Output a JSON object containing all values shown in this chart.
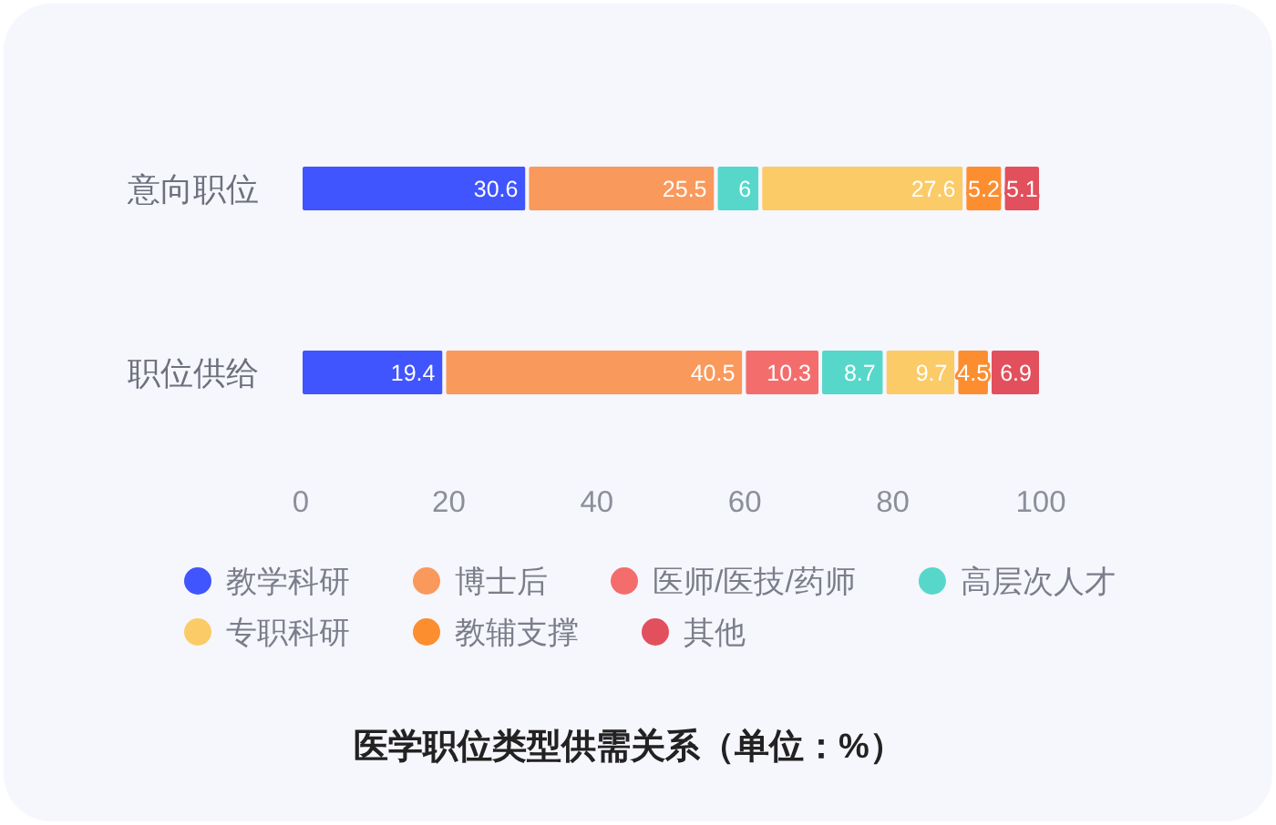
{
  "chart_data": {
    "type": "bar",
    "orientation": "horizontal",
    "stacked": true,
    "title": "医学职位类型供需关系（单位：%）",
    "categories": [
      "意向职位",
      "职位供给"
    ],
    "series": [
      {
        "name": "教学科研",
        "color": "#4055fe",
        "values": [
          30.6,
          19.4
        ]
      },
      {
        "name": "博士后",
        "color": "#fa995c",
        "values": [
          25.5,
          40.5
        ]
      },
      {
        "name": "医师/医技/药师",
        "color": "#f46d6d",
        "values": [
          null,
          10.3
        ]
      },
      {
        "name": "高层次人才",
        "color": "#57d7ca",
        "values": [
          6,
          8.7
        ]
      },
      {
        "name": "专职科研",
        "color": "#fbcb68",
        "values": [
          27.6,
          9.7
        ]
      },
      {
        "name": "教辅支撑",
        "color": "#fc8e30",
        "values": [
          5.2,
          4.5
        ]
      },
      {
        "name": "其他",
        "color": "#e1505c",
        "values": [
          5.1,
          6.9
        ]
      }
    ],
    "xlim": [
      0,
      100
    ],
    "xticks": [
      0,
      20,
      40,
      60,
      80,
      100
    ],
    "grid": false,
    "legend": "bottom",
    "data_labels": true
  }
}
